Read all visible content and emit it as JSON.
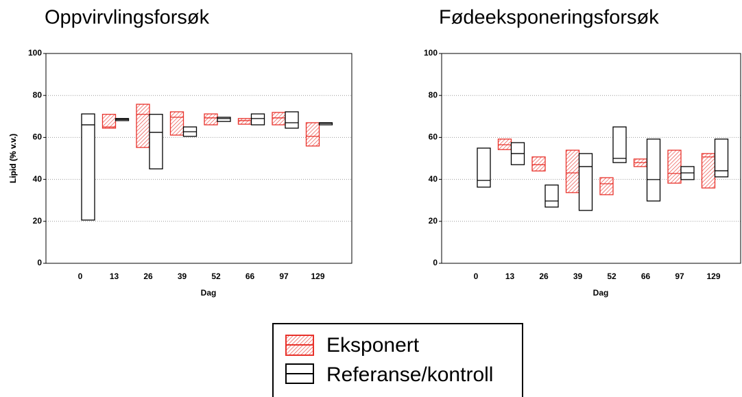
{
  "chart_data": [
    {
      "type": "floating-box",
      "title": "Oppvirvlingsforsøk",
      "x_label": "Dag",
      "y_label": "Lipid (% v.v.)",
      "categories": [
        "0",
        "13",
        "26",
        "39",
        "52",
        "66",
        "97",
        "129"
      ],
      "ylim": [
        0,
        100
      ],
      "yticks": [
        0,
        20,
        40,
        60,
        80,
        100
      ],
      "grid": true,
      "series": [
        {
          "name": "Eksponert",
          "color": "#e8312a",
          "hatch": true,
          "low": [
            null,
            64.4,
            55.2,
            61.1,
            66,
            66.3,
            66,
            55.9
          ],
          "median": [
            null,
            65,
            71,
            69.6,
            69.3,
            68,
            69.3,
            60.5
          ],
          "high": [
            null,
            71,
            75.8,
            72.2,
            71.2,
            69,
            71.9,
            67
          ]
        },
        {
          "name": "Referanse/kontroll",
          "color": "#000000",
          "hatch": false,
          "low": [
            20.6,
            68,
            45,
            60.5,
            67.6,
            66,
            64.4,
            66
          ],
          "median": [
            66,
            68.6,
            62.4,
            62.7,
            69,
            69,
            67,
            66.7
          ],
          "high": [
            71.2,
            69,
            71,
            65,
            69.6,
            71.2,
            72.2,
            67
          ]
        }
      ]
    },
    {
      "type": "floating-box",
      "title": "Fødeeksponeringsforsøk",
      "x_label": "Dag",
      "y_label": "Lipid (% v.v.)",
      "categories": [
        "0",
        "13",
        "26",
        "39",
        "52",
        "66",
        "97",
        "129"
      ],
      "ylim": [
        0,
        100
      ],
      "yticks": [
        0,
        20,
        40,
        60,
        80,
        100
      ],
      "grid": true,
      "series": [
        {
          "name": "Eksponert",
          "color": "#e8312a",
          "hatch": true,
          "low": [
            null,
            54.2,
            44,
            33.7,
            32.7,
            46.1,
            38.2,
            35.9
          ],
          "median": [
            null,
            56.5,
            47,
            43.1,
            37.9,
            48,
            42.8,
            50.7
          ],
          "high": [
            null,
            59.2,
            50.7,
            53.9,
            40.8,
            49.7,
            53.9,
            52.3
          ]
        },
        {
          "name": "Referanse/kontroll",
          "color": "#000000",
          "hatch": false,
          "low": [
            36.3,
            47,
            26.8,
            25.2,
            48,
            29.7,
            39.9,
            41.2
          ],
          "median": [
            39.5,
            52.3,
            29.7,
            46.1,
            50,
            39.9,
            43.1,
            44.1
          ],
          "high": [
            54.9,
            57.5,
            37.3,
            52.3,
            65,
            59.2,
            46.1,
            59.2
          ]
        }
      ]
    }
  ]
}
